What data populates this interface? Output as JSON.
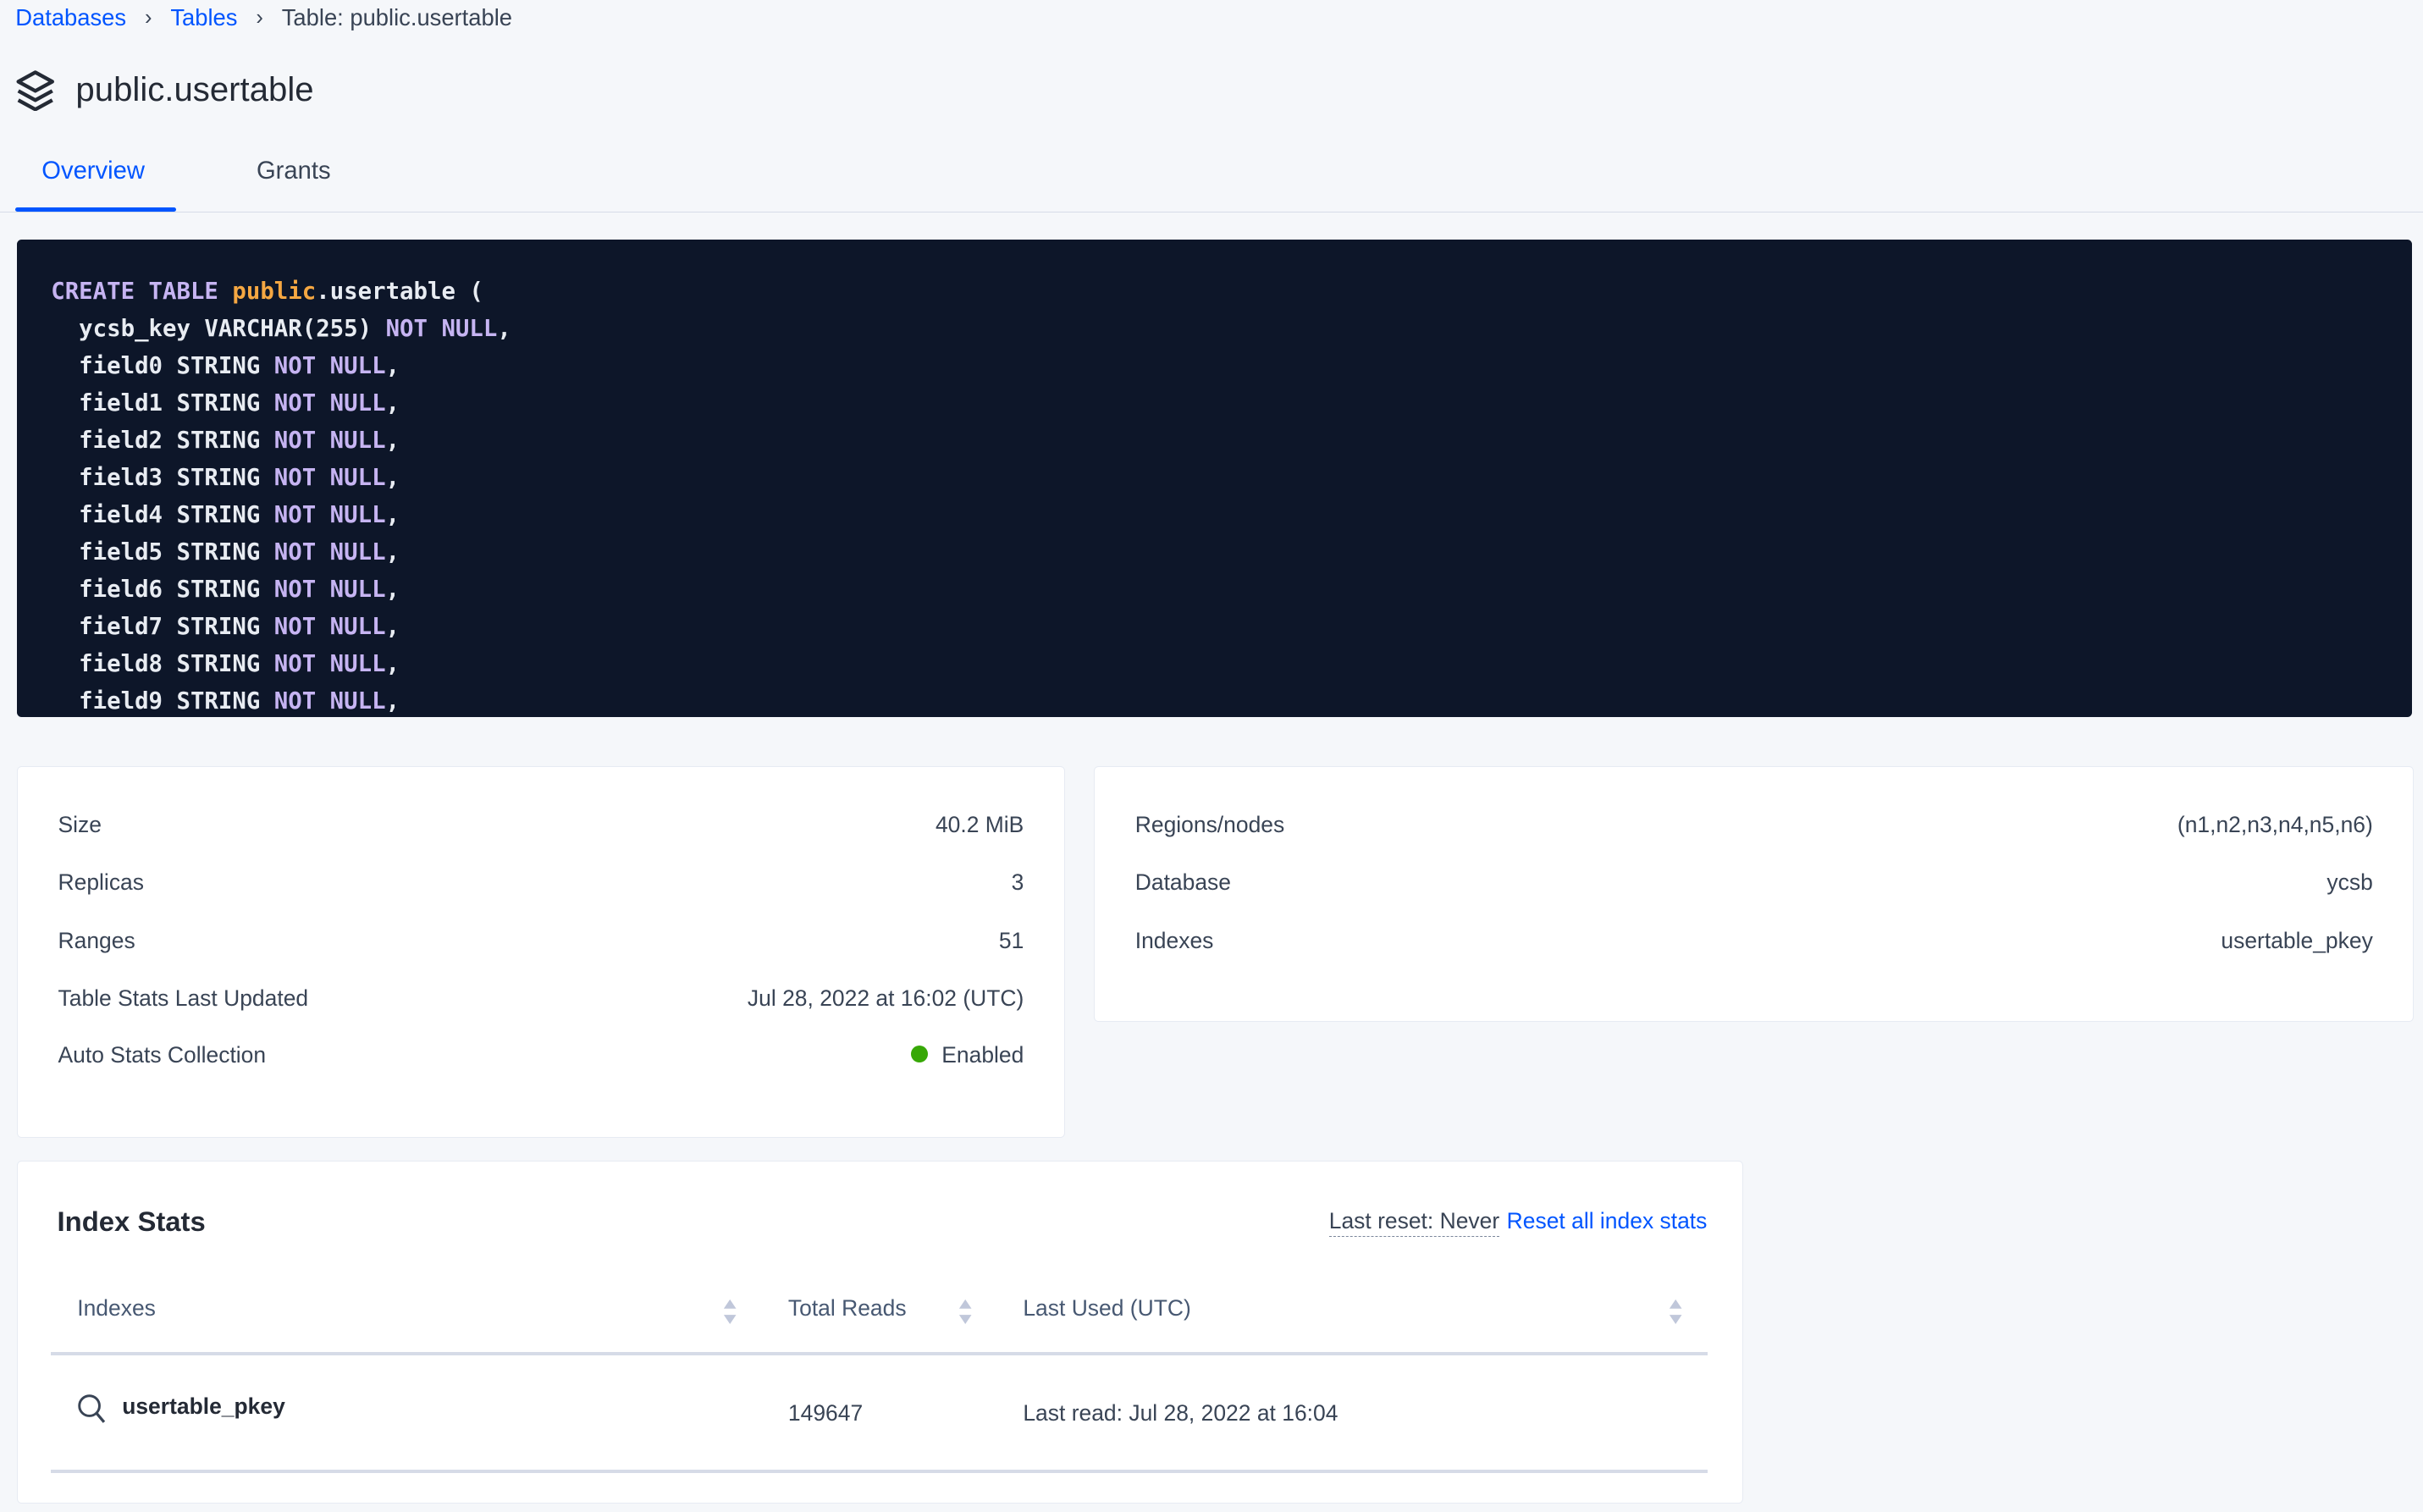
{
  "breadcrumb": {
    "items": [
      "Databases",
      "Tables"
    ],
    "current": "Table: public.usertable"
  },
  "page": {
    "title": "public.usertable",
    "icon": "stack-icon"
  },
  "tabs": [
    {
      "label": "Overview",
      "active": true
    },
    {
      "label": "Grants",
      "active": false
    }
  ],
  "create_statement": [
    [
      [
        "kw",
        "CREATE TABLE "
      ],
      [
        "ns",
        "public"
      ],
      [
        "t",
        ".usertable ("
      ]
    ],
    [
      [
        "t",
        "  ycsb_key VARCHAR(255) "
      ],
      [
        "kw",
        "NOT NULL"
      ],
      [
        "t",
        ","
      ]
    ],
    [
      [
        "t",
        "  field0 STRING "
      ],
      [
        "kw",
        "NOT NULL"
      ],
      [
        "t",
        ","
      ]
    ],
    [
      [
        "t",
        "  field1 STRING "
      ],
      [
        "kw",
        "NOT NULL"
      ],
      [
        "t",
        ","
      ]
    ],
    [
      [
        "t",
        "  field2 STRING "
      ],
      [
        "kw",
        "NOT NULL"
      ],
      [
        "t",
        ","
      ]
    ],
    [
      [
        "t",
        "  field3 STRING "
      ],
      [
        "kw",
        "NOT NULL"
      ],
      [
        "t",
        ","
      ]
    ],
    [
      [
        "t",
        "  field4 STRING "
      ],
      [
        "kw",
        "NOT NULL"
      ],
      [
        "t",
        ","
      ]
    ],
    [
      [
        "t",
        "  field5 STRING "
      ],
      [
        "kw",
        "NOT NULL"
      ],
      [
        "t",
        ","
      ]
    ],
    [
      [
        "t",
        "  field6 STRING "
      ],
      [
        "kw",
        "NOT NULL"
      ],
      [
        "t",
        ","
      ]
    ],
    [
      [
        "t",
        "  field7 STRING "
      ],
      [
        "kw",
        "NOT NULL"
      ],
      [
        "t",
        ","
      ]
    ],
    [
      [
        "t",
        "  field8 STRING "
      ],
      [
        "kw",
        "NOT NULL"
      ],
      [
        "t",
        ","
      ]
    ],
    [
      [
        "t",
        "  field9 STRING "
      ],
      [
        "kw",
        "NOT NULL"
      ],
      [
        "t",
        ","
      ]
    ]
  ],
  "summary_left": [
    {
      "label": "Size",
      "value": "40.2 MiB"
    },
    {
      "label": "Replicas",
      "value": "3"
    },
    {
      "label": "Ranges",
      "value": "51"
    },
    {
      "label": "Table Stats Last Updated",
      "value": "Jul 28, 2022 at 16:02 (UTC)"
    },
    {
      "label": "Auto Stats Collection",
      "value": "Enabled",
      "status_color": "#37a806"
    }
  ],
  "summary_right": [
    {
      "label": "Regions/nodes",
      "value": "(n1,n2,n3,n4,n5,n6)"
    },
    {
      "label": "Database",
      "value": "ycsb"
    },
    {
      "label": "Indexes",
      "value": "usertable_pkey"
    }
  ],
  "index_stats": {
    "title": "Index Stats",
    "last_reset": "Last reset: Never",
    "reset_link": "Reset all index stats",
    "columns": [
      "Indexes",
      "Total Reads",
      "Last Used (UTC)"
    ],
    "rows": [
      {
        "index": "usertable_pkey",
        "total_reads": "149647",
        "last_used": "Last read: Jul 28, 2022 at 16:04"
      }
    ]
  },
  "colors": {
    "accent": "#0055ff",
    "code_bg": "#0d1629",
    "keyword": "#c6b4f2",
    "namespace": "#f5a742"
  }
}
